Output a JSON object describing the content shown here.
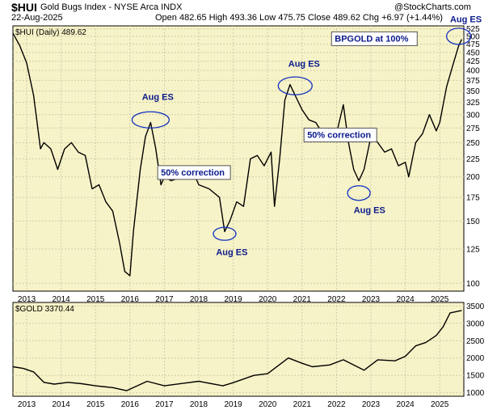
{
  "header": {
    "ticker": "$HUI",
    "name": "Gold Bugs Index - NYSE Arca INDX",
    "date": "22-Aug-2025",
    "ohlc": "Open 482.65  High 493.36  Low 475.75  Close 489.62  Chg +6.97 (+1.44%)",
    "watermark": "@StockCharts.com"
  },
  "colors": {
    "panel_bg": "#f7f3c8",
    "grid": "#cfcba8",
    "line": "#000000",
    "annotation": "#0a1a8c",
    "ellipse": "#1030c0"
  },
  "chart_data": [
    {
      "type": "line",
      "panel_label": "$HUI (Daily) 489.62",
      "y_scale": "log",
      "ylim": [
        95,
        535
      ],
      "y_ticks": [
        100,
        125,
        150,
        175,
        200,
        225,
        250,
        275,
        300,
        325,
        350,
        375,
        400,
        425,
        450,
        475,
        500,
        525
      ],
      "x_ticks": [
        "2013",
        "2014",
        "2015",
        "2016",
        "2017",
        "2018",
        "2019",
        "2020",
        "2021",
        "2022",
        "2023",
        "2024",
        "2025"
      ],
      "series": [
        {
          "x": [
            2012.6,
            2012.8,
            2013.0,
            2013.2,
            2013.4,
            2013.5,
            2013.7,
            2013.9,
            2014.1,
            2014.3,
            2014.5,
            2014.7,
            2014.9,
            2015.1,
            2015.3,
            2015.5,
            2015.7,
            2015.85,
            2016.0,
            2016.1,
            2016.3,
            2016.45,
            2016.6,
            2016.75,
            2016.9,
            2017.0,
            2017.2,
            2017.5,
            2017.8,
            2018.0,
            2018.3,
            2018.6,
            2018.75,
            2018.9,
            2019.1,
            2019.3,
            2019.5,
            2019.7,
            2019.9,
            2020.1,
            2020.2,
            2020.35,
            2020.5,
            2020.65,
            2020.8,
            2021.0,
            2021.2,
            2021.4,
            2021.6,
            2021.8,
            2022.0,
            2022.2,
            2022.35,
            2022.5,
            2022.65,
            2022.8,
            2023.0,
            2023.2,
            2023.4,
            2023.6,
            2023.8,
            2024.0,
            2024.1,
            2024.3,
            2024.5,
            2024.7,
            2024.9,
            2025.0,
            2025.2,
            2025.4,
            2025.55,
            2025.64
          ],
          "y": [
            510,
            470,
            420,
            340,
            240,
            250,
            240,
            210,
            240,
            250,
            235,
            230,
            185,
            190,
            170,
            160,
            130,
            108,
            105,
            140,
            210,
            260,
            285,
            240,
            190,
            200,
            195,
            200,
            210,
            190,
            185,
            175,
            140,
            150,
            170,
            165,
            225,
            230,
            215,
            235,
            165,
            225,
            330,
            365,
            340,
            310,
            290,
            285,
            265,
            270,
            265,
            320,
            250,
            210,
            195,
            210,
            260,
            250,
            235,
            240,
            215,
            220,
            200,
            250,
            265,
            300,
            270,
            285,
            360,
            420,
            470,
            490
          ]
        }
      ],
      "annotations": [
        "Aug ES",
        "Aug ES",
        "Aug ES",
        "Aug ES",
        "Aug ES",
        "50% correction",
        "50% correction",
        "BPGOLD at 100%"
      ]
    },
    {
      "type": "line",
      "panel_label": "$GOLD 3370.44",
      "ylim": [
        900,
        3600
      ],
      "y_ticks": [
        1000,
        1500,
        2000,
        2500,
        3000,
        3500
      ],
      "x_ticks": [
        "2013",
        "2014",
        "2015",
        "2016",
        "2017",
        "2018",
        "2019",
        "2020",
        "2021",
        "2022",
        "2023",
        "2024",
        "2025"
      ],
      "series": [
        {
          "x": [
            2012.6,
            2012.9,
            2013.2,
            2013.5,
            2013.8,
            2014.2,
            2014.6,
            2015.0,
            2015.5,
            2015.9,
            2016.5,
            2017.0,
            2017.6,
            2018.0,
            2018.7,
            2019.0,
            2019.6,
            2020.0,
            2020.6,
            2021.0,
            2021.3,
            2021.8,
            2022.2,
            2022.8,
            2023.2,
            2023.7,
            2024.0,
            2024.3,
            2024.6,
            2024.9,
            2025.1,
            2025.3,
            2025.64
          ],
          "y": [
            1750,
            1700,
            1600,
            1300,
            1250,
            1300,
            1260,
            1200,
            1150,
            1060,
            1330,
            1200,
            1280,
            1330,
            1200,
            1290,
            1500,
            1550,
            2000,
            1850,
            1750,
            1800,
            1950,
            1650,
            1950,
            1920,
            2050,
            2350,
            2450,
            2650,
            2900,
            3300,
            3370
          ]
        }
      ]
    }
  ]
}
